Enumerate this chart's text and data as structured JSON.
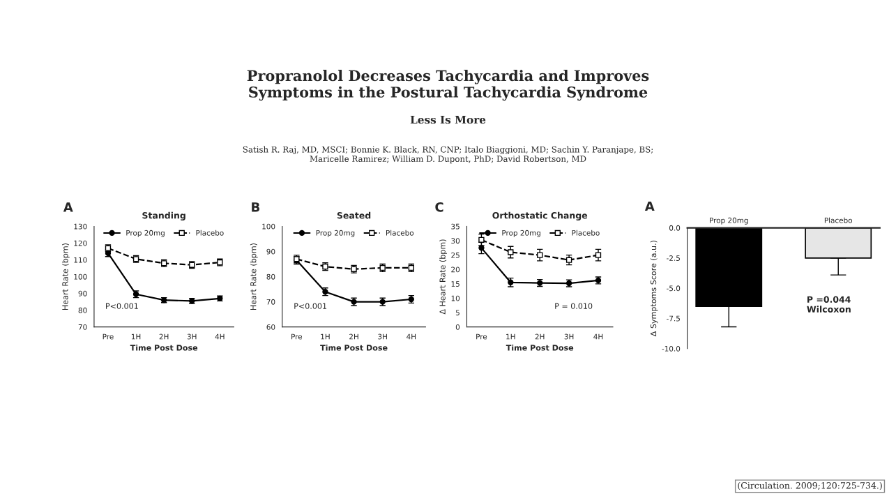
{
  "chart_data": [
    {
      "type": "line",
      "title": "Standing",
      "xlabel": "Time Post Dose",
      "ylabel": "Heart Rate (bpm)",
      "categories": [
        "Pre",
        "1H",
        "2H",
        "3H",
        "4H"
      ],
      "series": [
        {
          "name": "Prop 20mg",
          "color": "#000000",
          "marker": "circle",
          "line_style": "solid",
          "values": [
            114,
            89.5,
            86,
            85.5,
            87
          ],
          "errors": [
            2,
            2,
            1.5,
            1.5,
            1.5
          ]
        },
        {
          "name": "Placebo",
          "color": "#000000",
          "marker": "square",
          "line_style": "dashed",
          "values": [
            117,
            110.5,
            108,
            107,
            108.5
          ],
          "errors": [
            2,
            2,
            2,
            2,
            2
          ]
        }
      ],
      "ylim": [
        70,
        130
      ],
      "yticks": [
        70,
        80,
        90,
        100,
        110,
        120,
        130
      ],
      "legend": "top",
      "grid": false,
      "annotations": [
        "A",
        "P<0.001",
        "Propranolol Decreases Tachycardia and Improves\nSymptoms in the Postural Tachycardia Syndrome",
        "Less Is More",
        "Satish R. Raj, MD, MSCI; Bonnie K. Black, RN, CNP; Italo Biaggioni, MD; Sachin Y. Paranjape, BS;\nMaricelle Ramirez; William D. Dupont, PhD; David Robertson, MD"
      ]
    },
    {
      "type": "line",
      "title": "Seated",
      "xlabel": "Time Post Dose",
      "ylabel": "Heart Rate (bpm)",
      "categories": [
        "Pre",
        "1H",
        "2H",
        "3H",
        "4H"
      ],
      "series": [
        {
          "name": "Prop 20mg",
          "color": "#000000",
          "marker": "circle",
          "line_style": "solid",
          "values": [
            86.5,
            74,
            70,
            70,
            71
          ],
          "errors": [
            1.5,
            1.5,
            1.5,
            1.5,
            1.5
          ]
        },
        {
          "name": "Placebo",
          "color": "#000000",
          "marker": "square",
          "line_style": "dashed",
          "values": [
            87,
            84,
            83,
            83.5,
            83.5
          ],
          "errors": [
            1.5,
            1.5,
            1.5,
            1.5,
            1.5
          ]
        }
      ],
      "ylim": [
        60,
        100
      ],
      "yticks": [
        60,
        70,
        80,
        90,
        100
      ],
      "legend": "top",
      "grid": false,
      "annotations": [
        "B",
        "P<0.001"
      ]
    },
    {
      "type": "line",
      "title": "Orthostatic Change",
      "xlabel": "Time Post Dose",
      "ylabel": "Δ Heart Rate (bpm)",
      "categories": [
        "Pre",
        "1H",
        "2H",
        "3H",
        "4H"
      ],
      "series": [
        {
          "name": "Prop 20mg",
          "color": "#000000",
          "marker": "circle",
          "line_style": "solid",
          "values": [
            27.5,
            15.5,
            15.3,
            15.2,
            16.2
          ],
          "errors": [
            2,
            1.5,
            1.2,
            1.2,
            1.2
          ]
        },
        {
          "name": "Placebo",
          "color": "#000000",
          "marker": "square",
          "line_style": "dashed",
          "values": [
            30.3,
            26,
            25,
            23.3,
            25
          ],
          "errors": [
            2,
            2,
            2,
            1.7,
            2
          ]
        }
      ],
      "ylim": [
        0,
        35
      ],
      "yticks": [
        0,
        5,
        10,
        15,
        20,
        25,
        30,
        35
      ],
      "legend": "top",
      "grid": false,
      "annotations": [
        "C",
        "P = 0.010"
      ]
    },
    {
      "type": "bar",
      "ylabel": "Δ Symptoms Score (a.u.)",
      "categories": [
        "Prop 20mg",
        "Placebo"
      ],
      "values": [
        -6.5,
        -2.5
      ],
      "colors": [
        "#000000",
        "#e6e6e6"
      ],
      "errors": [
        [
          -8.2,
          -6.5
        ],
        [
          -3.9,
          -2.5
        ]
      ],
      "ylim": [
        -10,
        0
      ],
      "yticks": [
        {
          "value": 0,
          "label": "0.0"
        },
        {
          "value": -2.5,
          "label": "-2.5"
        },
        {
          "value": -5,
          "label": "-5.0"
        },
        {
          "value": -7.5,
          "label": "-7.5"
        },
        {
          "value": -10,
          "label": "-10.0"
        }
      ],
      "grid": false,
      "annotations": [
        "A",
        "P =0.044\nWilcoxon",
        "(Circulation. 2009;120:725-734.)"
      ]
    }
  ]
}
